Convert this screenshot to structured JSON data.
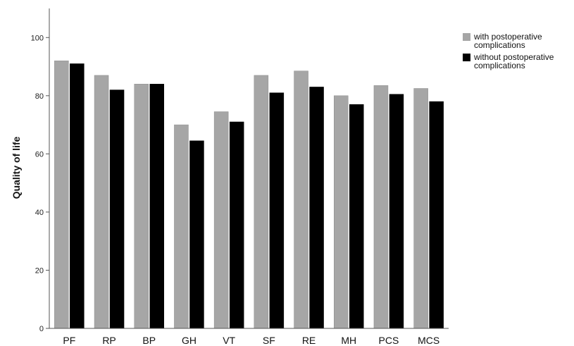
{
  "chart_data": {
    "type": "bar",
    "title": "",
    "xlabel": "",
    "ylabel": "Quality of life",
    "ylim": [
      0,
      110
    ],
    "yticks": [
      0,
      20,
      40,
      60,
      80,
      100
    ],
    "grid": false,
    "legend_position": "top-right",
    "categories": [
      "PF",
      "RP",
      "BP",
      "GH",
      "VT",
      "SF",
      "RE",
      "MH",
      "PCS",
      "MCS"
    ],
    "series": [
      {
        "name": "with postoperative complications",
        "legend_lines": [
          "with postoperative",
          "complications"
        ],
        "color": "#a6a6a6",
        "values": [
          92,
          87,
          84,
          70,
          74.5,
          87,
          88.5,
          80,
          83.5,
          82.5
        ]
      },
      {
        "name": "without postoperative complications",
        "legend_lines": [
          "without postoperative",
          "complications"
        ],
        "color": "#000000",
        "values": [
          91,
          82,
          84,
          64.5,
          71,
          81,
          83,
          77,
          80.5,
          78
        ]
      }
    ]
  }
}
